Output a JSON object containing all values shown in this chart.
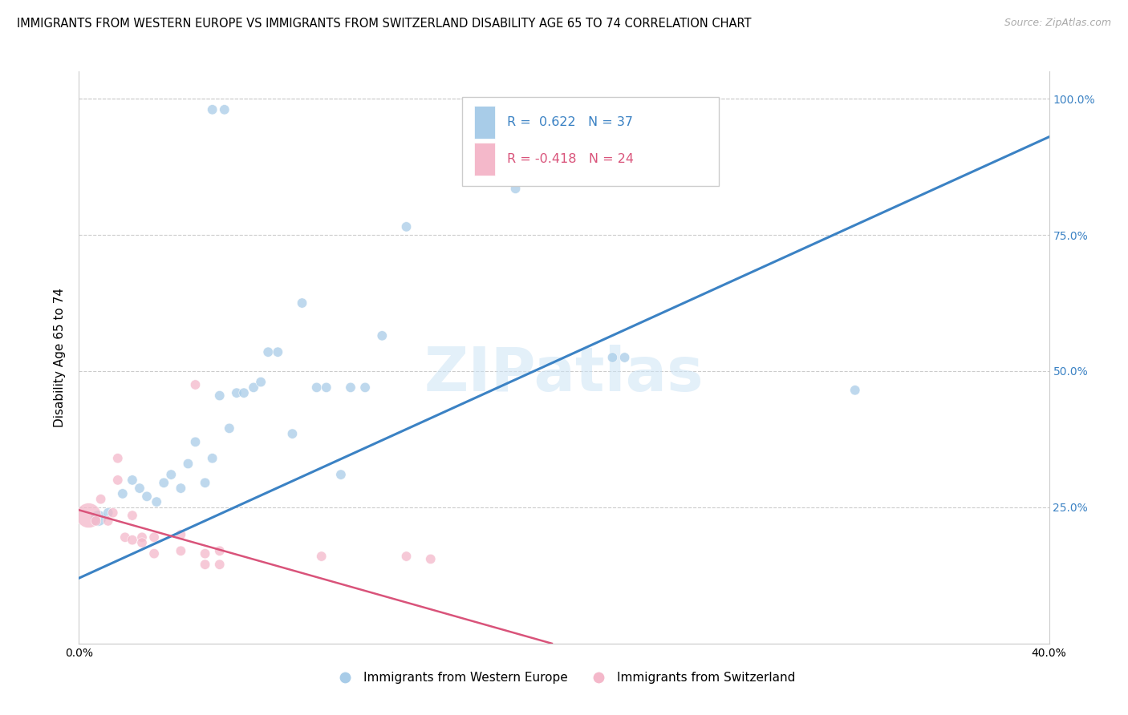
{
  "title": "IMMIGRANTS FROM WESTERN EUROPE VS IMMIGRANTS FROM SWITZERLAND DISABILITY AGE 65 TO 74 CORRELATION CHART",
  "source": "Source: ZipAtlas.com",
  "ylabel": "Disability Age 65 to 74",
  "watermark": "ZIPatlas",
  "xlim": [
    0.0,
    0.4
  ],
  "ylim": [
    0.0,
    1.05
  ],
  "xticks": [
    0.0,
    0.05,
    0.1,
    0.15,
    0.2,
    0.25,
    0.3,
    0.35,
    0.4
  ],
  "xtick_labels": [
    "0.0%",
    "",
    "",
    "",
    "",
    "",
    "",
    "",
    "40.0%"
  ],
  "ytick_right_labels": [
    "25.0%",
    "50.0%",
    "75.0%",
    "100.0%"
  ],
  "ytick_right_positions": [
    0.25,
    0.5,
    0.75,
    1.0
  ],
  "R_blue": 0.622,
  "N_blue": 37,
  "R_pink": -0.418,
  "N_pink": 24,
  "blue_color": "#a8cce8",
  "pink_color": "#f4b8ca",
  "blue_line_color": "#3b82c4",
  "pink_line_color": "#d9537a",
  "blue_scatter_x": [
    0.055,
    0.06,
    0.008,
    0.012,
    0.018,
    0.022,
    0.025,
    0.028,
    0.032,
    0.035,
    0.038,
    0.042,
    0.045,
    0.048,
    0.052,
    0.055,
    0.058,
    0.062,
    0.065,
    0.068,
    0.072,
    0.075,
    0.078,
    0.082,
    0.088,
    0.092,
    0.098,
    0.102,
    0.108,
    0.112,
    0.118,
    0.125,
    0.135,
    0.18,
    0.22,
    0.225,
    0.32
  ],
  "blue_scatter_y": [
    0.98,
    0.98,
    0.23,
    0.24,
    0.275,
    0.3,
    0.285,
    0.27,
    0.26,
    0.295,
    0.31,
    0.285,
    0.33,
    0.37,
    0.295,
    0.34,
    0.455,
    0.395,
    0.46,
    0.46,
    0.47,
    0.48,
    0.535,
    0.535,
    0.385,
    0.625,
    0.47,
    0.47,
    0.31,
    0.47,
    0.47,
    0.565,
    0.765,
    0.835,
    0.525,
    0.525,
    0.465
  ],
  "blue_scatter_sizes": [
    80,
    80,
    200,
    80,
    80,
    80,
    80,
    80,
    80,
    80,
    80,
    80,
    80,
    80,
    80,
    80,
    80,
    80,
    80,
    80,
    80,
    80,
    80,
    80,
    80,
    80,
    80,
    80,
    80,
    80,
    80,
    80,
    80,
    80,
    80,
    80,
    80
  ],
  "pink_scatter_x": [
    0.004,
    0.007,
    0.009,
    0.012,
    0.014,
    0.016,
    0.016,
    0.019,
    0.022,
    0.022,
    0.026,
    0.026,
    0.031,
    0.031,
    0.042,
    0.042,
    0.048,
    0.052,
    0.052,
    0.058,
    0.058,
    0.1,
    0.135,
    0.145
  ],
  "pink_scatter_y": [
    0.235,
    0.225,
    0.265,
    0.225,
    0.24,
    0.3,
    0.34,
    0.195,
    0.235,
    0.19,
    0.195,
    0.185,
    0.195,
    0.165,
    0.2,
    0.17,
    0.475,
    0.165,
    0.145,
    0.17,
    0.145,
    0.16,
    0.16,
    0.155
  ],
  "pink_scatter_sizes": [
    500,
    80,
    80,
    80,
    80,
    80,
    80,
    80,
    80,
    80,
    80,
    80,
    80,
    80,
    80,
    80,
    80,
    80,
    80,
    80,
    80,
    80,
    80,
    80
  ],
  "blue_line_x0": 0.0,
  "blue_line_y0": 0.12,
  "blue_line_x1": 0.4,
  "blue_line_y1": 0.93,
  "pink_line_x0": 0.0,
  "pink_line_y0": 0.245,
  "pink_line_x1": 0.195,
  "pink_line_y1": 0.0,
  "background_color": "#ffffff",
  "grid_color": "#cccccc",
  "title_fontsize": 10.5,
  "axis_label_fontsize": 11,
  "tick_fontsize": 10
}
